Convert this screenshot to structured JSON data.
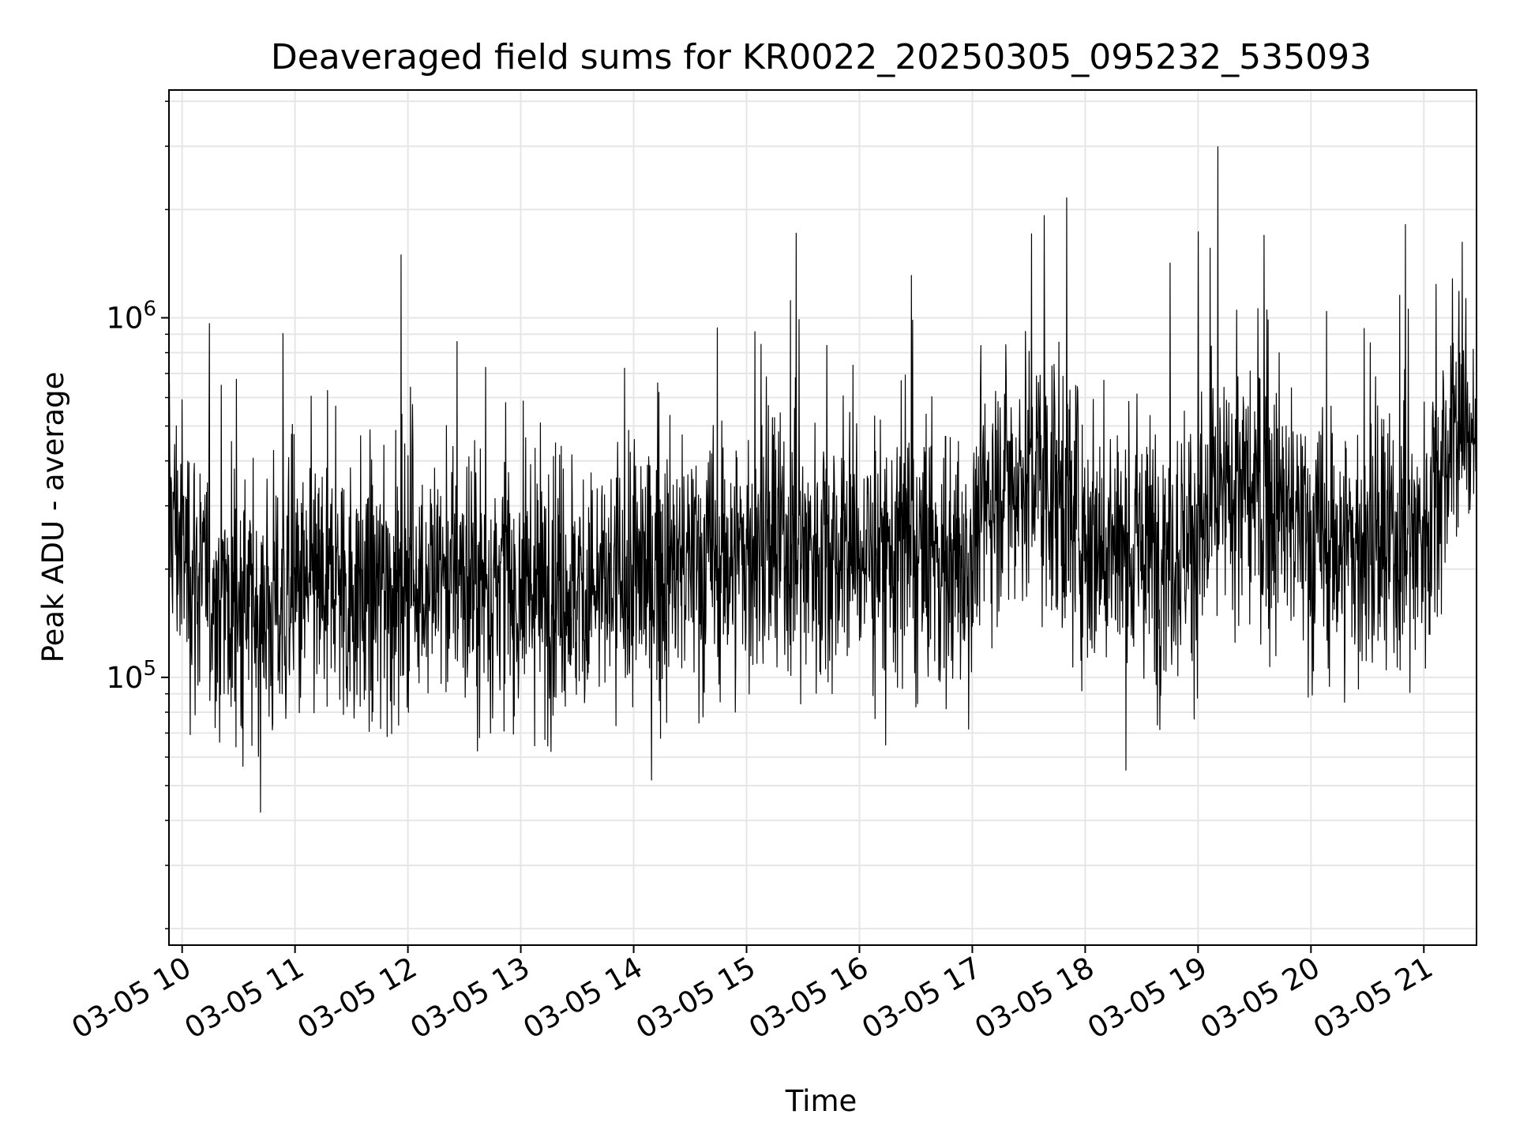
{
  "chart_data": {
    "type": "line",
    "title": "Deaveraged field sums for KR0022_20250305_095232_535093",
    "xlabel": "Time",
    "ylabel": "Peak ADU - average",
    "x_axis": {
      "kind": "time",
      "start": "2025-03-05 09:53",
      "end": "2025-03-05 21:28",
      "tick_values": [
        "2025-03-05 10:00",
        "2025-03-05 11:00",
        "2025-03-05 12:00",
        "2025-03-05 13:00",
        "2025-03-05 14:00",
        "2025-03-05 15:00",
        "2025-03-05 16:00",
        "2025-03-05 17:00",
        "2025-03-05 18:00",
        "2025-03-05 19:00",
        "2025-03-05 20:00",
        "2025-03-05 21:00"
      ],
      "tick_labels": [
        "03-05 10",
        "03-05 11",
        "03-05 12",
        "03-05 13",
        "03-05 14",
        "03-05 15",
        "03-05 16",
        "03-05 17",
        "03-05 18",
        "03-05 19",
        "03-05 20",
        "03-05 21"
      ]
    },
    "y_axis": {
      "scale": "log",
      "ylim": [
        18000,
        4300000
      ],
      "tick_values": [
        100000,
        1000000
      ],
      "tick_labels": [
        {
          "base": "10",
          "exp": "5"
        },
        {
          "base": "10",
          "exp": "6"
        }
      ]
    },
    "grid": true,
    "line_color": "#000000",
    "grid_color": "#e6e6e6",
    "series": [
      {
        "x": [
          "2025-03-05 09:53",
          "2025-03-05 10:00",
          "2025-03-05 10:15",
          "2025-03-05 10:30",
          "2025-03-05 10:40",
          "2025-03-05 11:00",
          "2025-03-05 11:20",
          "2025-03-05 11:40",
          "2025-03-05 12:00",
          "2025-03-05 12:20",
          "2025-03-05 12:40",
          "2025-03-05 13:00",
          "2025-03-05 13:20",
          "2025-03-05 13:40",
          "2025-03-05 14:00",
          "2025-03-05 14:20",
          "2025-03-05 14:40",
          "2025-03-05 15:00",
          "2025-03-05 15:20",
          "2025-03-05 15:40",
          "2025-03-05 16:00",
          "2025-03-05 16:20",
          "2025-03-05 16:40",
          "2025-03-05 16:55",
          "2025-03-05 17:10",
          "2025-03-05 17:25",
          "2025-03-05 17:40",
          "2025-03-05 18:00",
          "2025-03-05 18:20",
          "2025-03-05 18:40",
          "2025-03-05 19:00",
          "2025-03-05 19:20",
          "2025-03-05 19:40",
          "2025-03-05 20:00",
          "2025-03-05 20:20",
          "2025-03-05 20:40",
          "2025-03-05 21:00",
          "2025-03-05 21:15",
          "2025-03-05 21:28"
        ],
        "values": [
          300000,
          230000,
          170000,
          160000,
          150000,
          165000,
          180000,
          170000,
          185000,
          195000,
          180000,
          175000,
          185000,
          170000,
          190000,
          200000,
          210000,
          220000,
          225000,
          230000,
          225000,
          220000,
          215000,
          200000,
          330000,
          380000,
          360000,
          260000,
          220000,
          230000,
          250000,
          330000,
          310000,
          240000,
          230000,
          220000,
          260000,
          480000,
          520000
        ]
      }
    ]
  }
}
